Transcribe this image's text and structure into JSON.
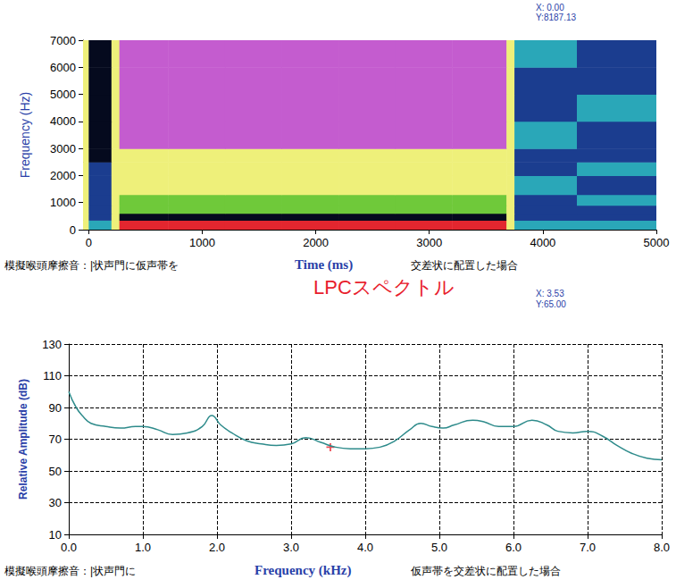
{
  "chart_data": [
    {
      "type": "heatmap",
      "x_label": "Time (ms)",
      "y_label": "Frequency (Hz)",
      "caption_left": "模擬喉頭摩擦音：|状声門に仮声帯を",
      "caption_right": "交差状に配置した場合",
      "annotations": [
        "X: 0.00",
        "Y:8187.13"
      ],
      "time_bins": [
        -50,
        0,
        200,
        270,
        700,
        1200,
        1700,
        2200,
        2700,
        3200,
        3680,
        3750,
        4300,
        5000
      ],
      "freq_bins": [
        0,
        350,
        600,
        900,
        1300,
        2000,
        2500,
        3000,
        4000,
        5000,
        6000,
        7000
      ],
      "cells": [
        [
          4,
          2,
          4,
          6,
          6,
          6,
          6,
          6,
          6,
          6,
          4,
          2,
          2
        ],
        [
          4,
          1,
          4,
          0,
          0,
          0,
          0,
          0,
          0,
          0,
          4,
          1,
          1
        ],
        [
          4,
          1,
          4,
          3,
          3,
          3,
          3,
          3,
          3,
          3,
          4,
          1,
          1
        ],
        [
          4,
          1,
          4,
          3,
          3,
          3,
          3,
          3,
          3,
          3,
          4,
          1,
          2
        ],
        [
          4,
          1,
          4,
          4,
          4,
          4,
          4,
          4,
          4,
          4,
          4,
          2,
          1
        ],
        [
          4,
          1,
          4,
          4,
          4,
          4,
          4,
          4,
          4,
          4,
          4,
          1,
          2
        ],
        [
          4,
          0,
          4,
          4,
          4,
          4,
          4,
          4,
          4,
          4,
          4,
          1,
          1
        ],
        [
          4,
          0,
          4,
          5,
          5,
          5,
          5,
          5,
          5,
          5,
          4,
          2,
          1
        ],
        [
          4,
          0,
          4,
          5,
          5,
          5,
          5,
          5,
          5,
          5,
          4,
          1,
          2
        ],
        [
          4,
          0,
          4,
          5,
          5,
          5,
          5,
          5,
          5,
          5,
          4,
          1,
          1
        ],
        [
          4,
          0,
          4,
          5,
          5,
          5,
          5,
          5,
          5,
          5,
          4,
          2,
          1
        ]
      ],
      "level_colors": [
        "#050a1e",
        "#1b3d8f",
        "#2aa7b8",
        "#6fc93a",
        "#eef07a",
        "#c45ccf",
        "#e3262f"
      ],
      "xlim": [
        -50,
        5000
      ],
      "xticks": [
        0,
        1000,
        2000,
        3000,
        4000,
        5000
      ],
      "ylim": [
        0,
        7000
      ],
      "yticks": [
        0,
        1000,
        2000,
        3000,
        4000,
        5000,
        6000,
        7000
      ],
      "grid": false
    },
    {
      "type": "line",
      "title": "LPCスペクトル",
      "x_label": "Frequency (kHz)",
      "y_label": "Relative Amplitude (dB)",
      "caption_left": "模擬喉頭摩擦音：|状声門に",
      "caption_right": "仮声帯を交差状に配置した場合",
      "annotations": [
        "X: 3.53",
        "Y:65.00"
      ],
      "cursor": {
        "x": 3.53,
        "y": 65
      },
      "x": [
        0,
        0.1,
        0.2,
        0.3,
        0.5,
        0.7,
        0.9,
        1.0,
        1.2,
        1.4,
        1.6,
        1.8,
        1.93,
        2.05,
        2.2,
        2.4,
        2.6,
        2.8,
        3.0,
        3.2,
        3.4,
        3.6,
        3.8,
        4.0,
        4.2,
        4.4,
        4.6,
        4.75,
        4.9,
        5.05,
        5.2,
        5.45,
        5.6,
        5.8,
        6.0,
        6.25,
        6.45,
        6.6,
        6.8,
        7.0,
        7.2,
        7.4,
        7.6,
        7.8,
        8.0
      ],
      "values": [
        100,
        90,
        84,
        80,
        78,
        77,
        78,
        78,
        76,
        73,
        74,
        78,
        85,
        79,
        74,
        69,
        67,
        66,
        67,
        71,
        68,
        65,
        64,
        64,
        65,
        69,
        76,
        80,
        78,
        77,
        79,
        82,
        81,
        78,
        78,
        82,
        79,
        75,
        74,
        75,
        72,
        66,
        61,
        58,
        57
      ],
      "color": "#2e8b8b",
      "xlim": [
        0,
        8
      ],
      "xticks": [
        {
          "value": 0,
          "label": "0.0"
        },
        {
          "value": 1,
          "label": "1.0"
        },
        {
          "value": 2,
          "label": "2.0"
        },
        {
          "value": 3,
          "label": "3.0"
        },
        {
          "value": 4,
          "label": "4.0"
        },
        {
          "value": 5,
          "label": "5.0"
        },
        {
          "value": 6,
          "label": "6.0"
        },
        {
          "value": 7,
          "label": "7.0"
        },
        {
          "value": 8,
          "label": "8.0"
        }
      ],
      "ylim": [
        10,
        130
      ],
      "yticks": [
        10,
        30,
        50,
        70,
        90,
        110,
        130
      ],
      "grid": true
    }
  ]
}
